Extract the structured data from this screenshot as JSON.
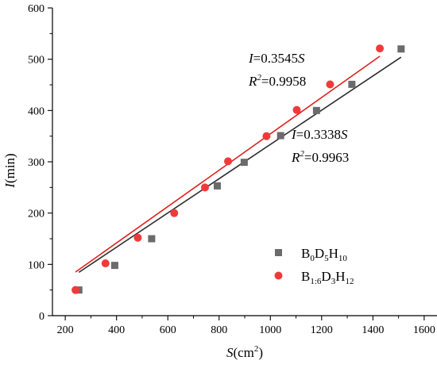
{
  "chart_data": {
    "type": "scatter",
    "xlabel": "S(cm²)",
    "ylabel": "I(min)",
    "xlim": [
      150,
      1650
    ],
    "ylim": [
      0,
      600
    ],
    "xticks": [
      200,
      400,
      600,
      800,
      1000,
      1200,
      1400,
      1600
    ],
    "yticks": [
      0,
      100,
      200,
      300,
      400,
      500,
      600
    ],
    "xtick_labels": [
      "200",
      "400",
      "600",
      "800",
      "1000",
      "1200",
      "1400",
      "1600"
    ],
    "ytick_labels": [
      "0",
      "100",
      "200",
      "300",
      "400",
      "500",
      "600"
    ],
    "grid": false,
    "legend_position": "bottom-right",
    "series": [
      {
        "name": "B0D5H10",
        "marker": "square",
        "color": "#6b6b6b",
        "line_color": "#2d2d2d",
        "x": [
          253,
          393,
          537,
          793,
          898,
          1040,
          1180,
          1318,
          1510
        ],
        "y": [
          50,
          98,
          150,
          253,
          299,
          351,
          400,
          451,
          520
        ],
        "fit": {
          "slope": 0.3338,
          "x_range": [
            253,
            1510
          ]
        }
      },
      {
        "name": "B1:6D3H12",
        "marker": "circle",
        "color": "#f03a3a",
        "line_color": "#e0201c",
        "x": [
          240,
          357,
          483,
          625,
          745,
          835,
          985,
          1103,
          1233,
          1427
        ],
        "y": [
          50,
          102,
          152,
          200,
          250,
          301,
          350,
          401,
          451,
          521
        ],
        "fit": {
          "slope": 0.3545,
          "x_range": [
            240,
            1427
          ]
        }
      }
    ],
    "legend": [
      {
        "base": "B",
        "sub1": "0",
        "mid": "D",
        "sub2": "5",
        "mid2": "H",
        "sub3": "10"
      },
      {
        "base": "B",
        "sub1": "1:6",
        "mid": "D",
        "sub2": "3",
        "mid2": "H",
        "sub3": "12"
      }
    ],
    "annotations": [
      {
        "eq_prefix": "I",
        "eq_value": "=0.3545",
        "eq_var": "S",
        "r2_label": "R",
        "r2_sup": "2",
        "r2_value": "=0.9958"
      },
      {
        "eq_prefix": "I",
        "eq_value": "=0.3338",
        "eq_var": "S",
        "r2_label": "R",
        "r2_sup": "2",
        "r2_value": "=0.9963"
      }
    ],
    "axis_text": {
      "x_main": "S",
      "x_unit": "(cm",
      "x_sup": "2",
      "x_close": ")",
      "y_main": "I",
      "y_unit": "(min)"
    }
  }
}
